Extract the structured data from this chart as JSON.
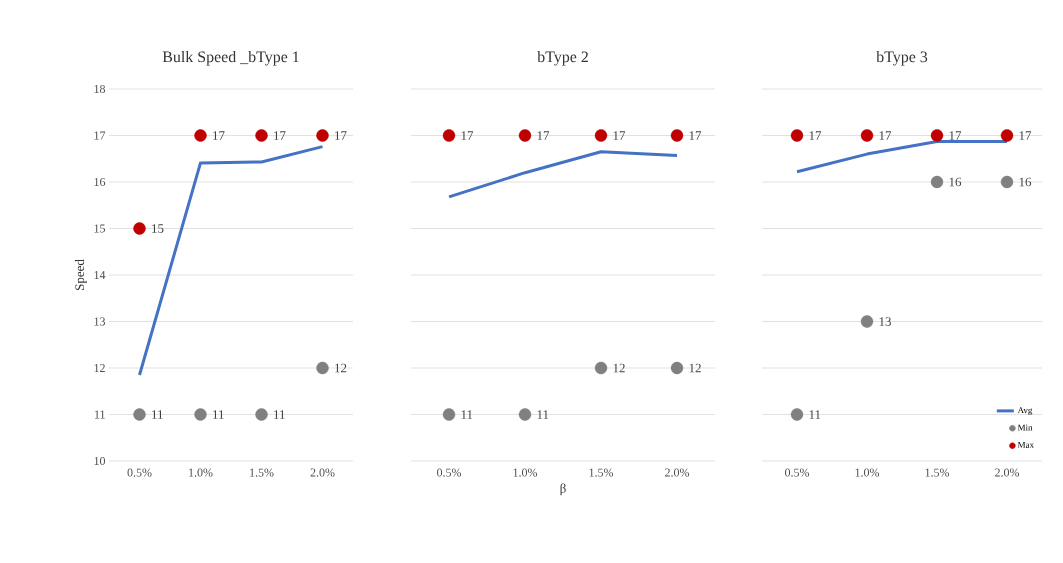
{
  "chart_data": [
    {
      "type": "line",
      "title": "Bulk Speed _bType 1",
      "ylabel": "Speed",
      "categories": [
        "0.5%",
        "1.0%",
        "1.5%",
        "2.0%"
      ],
      "ylim": [
        10,
        18
      ],
      "yticks": [
        10,
        11,
        12,
        13,
        14,
        15,
        16,
        17,
        18
      ],
      "grid": "y",
      "series": [
        {
          "color": "#4472c4",
          "marker": "none",
          "line_style": "solid",
          "values": [
            11.85,
            16.41,
            16.43,
            16.76
          ]
        },
        {
          "type": "scatter",
          "color": "#808080",
          "marker": "circle",
          "values": [
            11,
            11,
            11,
            12
          ],
          "value_labels": [
            "11",
            "11",
            "11",
            "12"
          ]
        },
        {
          "type": "scatter",
          "color": "#c00000",
          "marker": "circle",
          "values": [
            15,
            17,
            17,
            17
          ],
          "value_labels": [
            "15",
            "17",
            "17",
            "17"
          ]
        }
      ]
    },
    {
      "type": "line",
      "title": "bType 2",
      "xlabel": "β",
      "categories": [
        "0.5%",
        "1.0%",
        "1.5%",
        "2.0%"
      ],
      "ylim": [
        10,
        18
      ],
      "yticks": [
        10,
        11,
        12,
        13,
        14,
        15,
        16,
        17,
        18
      ],
      "grid": "y",
      "tick_labels": "x",
      "series": [
        {
          "color": "#4472c4",
          "marker": "none",
          "line_style": "solid",
          "values": [
            15.68,
            16.2,
            16.65,
            16.57
          ]
        },
        {
          "type": "scatter",
          "color": "#808080",
          "marker": "circle",
          "values": [
            11,
            11,
            12,
            12
          ],
          "value_labels": [
            "11",
            "11",
            "12",
            "12"
          ]
        },
        {
          "type": "scatter",
          "color": "#c00000",
          "marker": "circle",
          "values": [
            17,
            17,
            17,
            17
          ],
          "value_labels": [
            "17",
            "17",
            "17",
            "17"
          ]
        }
      ]
    },
    {
      "type": "line",
      "title": "bType 3",
      "categories": [
        "0.5%",
        "1.0%",
        "1.5%",
        "2.0%"
      ],
      "ylim": [
        10,
        18
      ],
      "yticks": [
        10,
        11,
        12,
        13,
        14,
        15,
        16,
        17,
        18
      ],
      "grid": "y",
      "tick_labels": "x",
      "legend": "bottom right",
      "series": [
        {
          "name": "Avg",
          "color": "#4472c4",
          "marker": "none",
          "line_style": "solid",
          "values": [
            16.22,
            16.6,
            16.87,
            16.87
          ]
        },
        {
          "type": "scatter",
          "name": "Min",
          "color": "#808080",
          "marker": "circle",
          "values": [
            11,
            13,
            16,
            16
          ],
          "value_labels": [
            "11",
            "13",
            "16",
            "16"
          ]
        },
        {
          "type": "scatter",
          "name": "Max",
          "color": "#c00000",
          "marker": "circle",
          "values": [
            17,
            17,
            17,
            17
          ],
          "value_labels": [
            "17",
            "17",
            "17",
            "17"
          ]
        }
      ]
    }
  ]
}
